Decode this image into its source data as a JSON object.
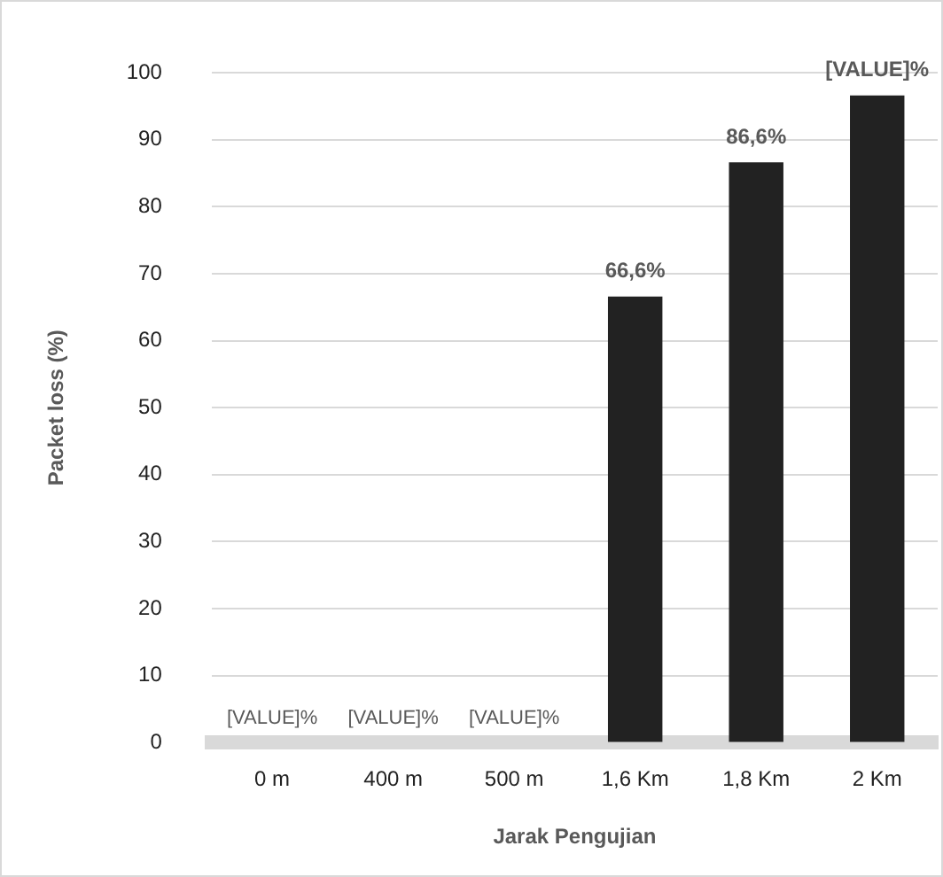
{
  "chart_data": {
    "type": "bar",
    "xlabel": "Jarak Pengujian",
    "ylabel": "Packet loss (%)",
    "categories": [
      "0 m",
      "400 m",
      "500 m",
      "1,6 Km",
      "1,8 Km",
      "2 Km"
    ],
    "values": [
      0,
      0,
      0,
      66.6,
      86.6,
      96.6
    ],
    "color": "#222222",
    "value_labels": [
      "[VALUE]%",
      "[VALUE]%",
      "[VALUE]%",
      "66,6%",
      "86,6%",
      "[VALUE]%"
    ],
    "ylim": [
      0,
      100
    ],
    "yticks": [
      0,
      10,
      20,
      30,
      40,
      50,
      60,
      70,
      80,
      90,
      100
    ],
    "grid": "y",
    "legend": false
  }
}
